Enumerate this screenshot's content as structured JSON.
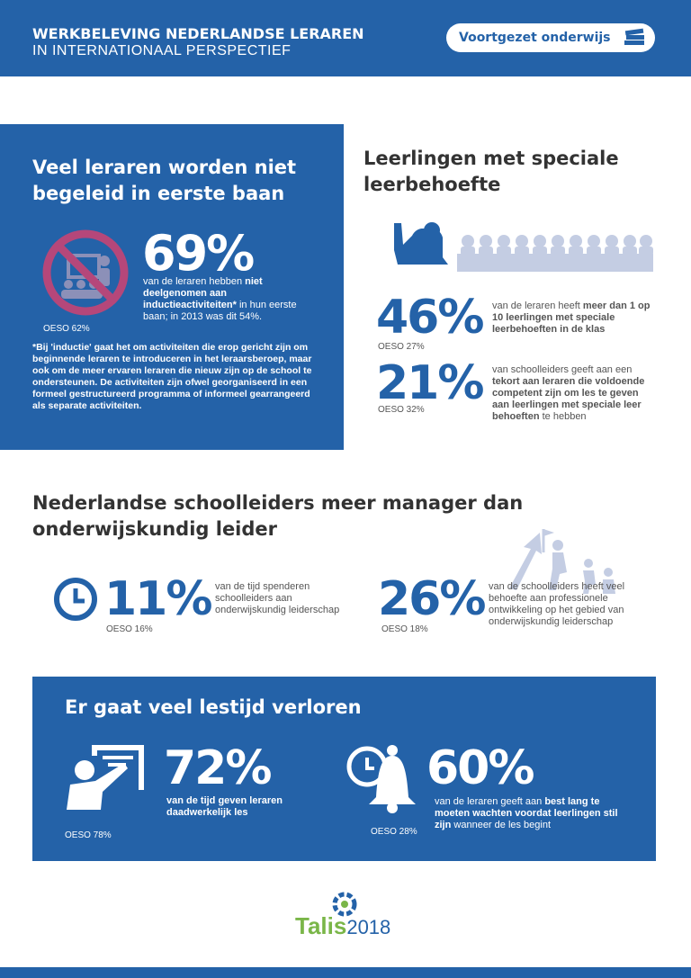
{
  "header": {
    "title_line1": "WERKBELEVING NEDERLANDSE LERAREN",
    "title_line2": "IN INTERNATIONAAL PERSPECTIEF",
    "badge": "Voortgezet onderwijs"
  },
  "induction": {
    "heading": "Veel leraren worden niet begeleid in eerste baan",
    "stat": "69%",
    "desc_pre": "van de leraren hebben ",
    "desc_bold": "niet deelgenomen aan inductieactiviteiten*",
    "desc_post": " in hun eerste baan; in 2013 was dit 54%.",
    "oeso": "OESO 62%",
    "footnote": "*Bij 'inductie' gaat het om activiteiten die erop gericht zijn om beginnende leraren te introduceren in het leraarsberoep, maar ook om de meer ervaren leraren die nieuw zijn op de school te ondersteunen. De activiteiten zijn ofwel georganiseerd in een formeel gestructureerd programma of informeel gearrangeerd als separate activiteiten."
  },
  "special": {
    "heading": "Leerlingen met speciale leerbehoefte",
    "stat1": "46%",
    "desc1_pre": "van de leraren heeft ",
    "desc1_bold": "meer dan 1 op 10 leerlingen met speciale leerbehoeften in de klas",
    "oeso1": "OESO 27%",
    "stat2": "21%",
    "desc2_pre": "van schoolleiders geeft aan een ",
    "desc2_bold": "tekort aan leraren die voldoende competent zijn om les te geven aan leerlingen met speciale leer behoeften",
    "desc2_post": " te hebben",
    "oeso2": "OESO 32%"
  },
  "leaders": {
    "heading": "Nederlandse schoolleiders meer manager dan onderwijskundig leider",
    "stat1": "11%",
    "desc1": "van de tijd spenderen schoolleiders aan onderwijskundig leiderschap",
    "oeso1": "OESO 16%",
    "stat2": "26%",
    "desc2": "van de schoolleiders heeft veel behoefte aan professionele ontwikkeling op het gebied van onderwijskundig leiderschap",
    "oeso2": "OESO 18%"
  },
  "lesson": {
    "heading": "Er gaat veel lestijd verloren",
    "stat1": "72%",
    "desc1": "van de tijd geven leraren daadwerkelijk les",
    "oeso1": "OESO 78%",
    "stat2": "60%",
    "desc2_pre": "van de leraren geeft aan ",
    "desc2_bold": "best lang te moeten wachten voordat leerlingen stil zijn",
    "desc2_post": " wanneer de les begint",
    "oeso2": "OESO 28%"
  },
  "logo": {
    "talis": "Talis",
    "year": "2018"
  },
  "icons": [
    "no-induction-icon",
    "books-icon",
    "raised-hand-icon",
    "clock-icon",
    "climbing-figures-icon",
    "teacher-board-icon",
    "bell-clock-icon",
    "talis-logo-icon"
  ],
  "colors": {
    "primary": "#2462a8",
    "accent_magenta": "#b5477a",
    "logo_green": "#7ab648"
  }
}
